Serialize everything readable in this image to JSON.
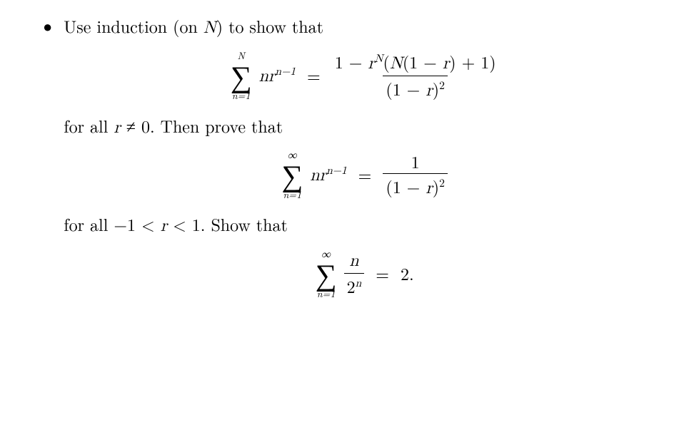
{
  "intro": "Use induction (on ",
  "introVar": "N",
  "introEnd": ") to show that",
  "eq1": {
    "upper": "N",
    "lower": "n=1",
    "summand_prefix": "nr",
    "summand_exp": "n−1",
    "rhs_num_a": "1 − ",
    "rhs_num_rvar": "r",
    "rhs_num_rexp": "N",
    "rhs_num_b": "(",
    "rhs_num_Nvar": "N",
    "rhs_num_c": "(1 − ",
    "rhs_num_rvar2": "r",
    "rhs_num_d": ") + 1)",
    "rhs_den_a": "(1 − ",
    "rhs_den_r": "r",
    "rhs_den_b": ")",
    "rhs_den_exp": "2"
  },
  "mid1_a": "for all ",
  "mid1_r": "r",
  "mid1_b": " ≠ 0. Then prove that",
  "eq2": {
    "upper": "∞",
    "lower": "n=1",
    "summand_prefix": "nr",
    "summand_exp": "n−1",
    "rhs_num": "1",
    "rhs_den_a": "(1 − ",
    "rhs_den_r": "r",
    "rhs_den_b": ")",
    "rhs_den_exp": "2"
  },
  "mid2_a": "for all −1 < ",
  "mid2_r": "r",
  "mid2_b": " < 1. Show that",
  "eq3": {
    "upper": "∞",
    "lower": "n=1",
    "num": "n",
    "den_base": "2",
    "den_exp": "n",
    "rhs": "2."
  },
  "colors": {
    "text": "#000000",
    "background": "#ffffff"
  },
  "fontsize_body": 24,
  "fontsize_limits": 14,
  "fontsize_sigma": 42
}
